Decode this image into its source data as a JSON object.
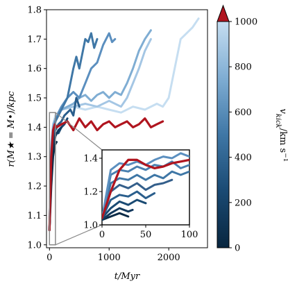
{
  "chart_data": {
    "type": "line",
    "xlabel": "t/Myr",
    "ylabel": "r(M★ = M•)/kpc",
    "xlim": [
      -50,
      2650
    ],
    "ylim": [
      0.99,
      1.8
    ],
    "xticks": [
      0,
      1000,
      2000
    ],
    "yticks": [
      1.0,
      1.1,
      1.2,
      1.3,
      1.4,
      1.5,
      1.6,
      1.7,
      1.8
    ],
    "xtick_labels": [
      "0",
      "1000",
      "2000"
    ],
    "ytick_labels": [
      "1.0",
      "1.1",
      "1.2",
      "1.3",
      "1.4",
      "1.5",
      "1.6",
      "1.7",
      "1.8"
    ],
    "colorbar": {
      "label": "v_kick/km s⁻¹",
      "label_main": "v",
      "label_sub": "kick",
      "label_units": "/km s",
      "label_sup": "−1",
      "range": [
        0,
        1000
      ],
      "ticks": [
        0,
        200,
        400,
        600,
        800,
        1000
      ],
      "tick_labels": [
        "0",
        "200",
        "400",
        "600",
        "800",
        "1000"
      ],
      "extend": "max",
      "extend_color": "#b0151f",
      "colors_low_to_high": [
        "#08263f",
        "#1a4a73",
        "#3f77a6",
        "#7fadd3",
        "#c6def1"
      ]
    },
    "series": [
      {
        "kick": 0,
        "color": "#b0151f",
        "x": [
          0,
          30,
          60,
          90,
          120,
          200,
          300,
          400,
          500,
          600,
          700,
          800,
          900,
          1000,
          1100,
          1200,
          1300,
          1400,
          1500,
          1600,
          1700,
          1800,
          1900
        ],
        "y": [
          1.05,
          1.3,
          1.39,
          1.41,
          1.4,
          1.41,
          1.42,
          1.39,
          1.43,
          1.4,
          1.42,
          1.39,
          1.41,
          1.42,
          1.4,
          1.41,
          1.42,
          1.4,
          1.41,
          1.43,
          1.4,
          1.41,
          1.42
        ]
      },
      {
        "kick": 60,
        "color": "#0b2b47",
        "x": [
          0,
          30,
          60,
          90,
          120
        ],
        "y": [
          1.05,
          1.2,
          1.3,
          1.34,
          1.35
        ]
      },
      {
        "kick": 120,
        "color": "#12385c",
        "x": [
          0,
          30,
          60,
          100,
          150,
          200
        ],
        "y": [
          1.05,
          1.24,
          1.33,
          1.37,
          1.39,
          1.4
        ]
      },
      {
        "kick": 200,
        "color": "#1a4a73",
        "x": [
          0,
          30,
          60,
          100,
          150,
          200,
          250,
          300
        ],
        "y": [
          1.05,
          1.26,
          1.35,
          1.38,
          1.38,
          1.4,
          1.41,
          1.43
        ]
      },
      {
        "kick": 300,
        "color": "#2a5e8c",
        "x": [
          0,
          30,
          60,
          100,
          150,
          200,
          250,
          300,
          350,
          400,
          450,
          500
        ],
        "y": [
          1.05,
          1.28,
          1.37,
          1.39,
          1.41,
          1.42,
          1.44,
          1.45,
          1.46,
          1.44,
          1.5,
          1.47
        ]
      },
      {
        "kick": 400,
        "color": "#3f77a6",
        "x": [
          0,
          30,
          60,
          100,
          150,
          200,
          250,
          300,
          350,
          400,
          450,
          500,
          550,
          600,
          650,
          700,
          750,
          800
        ],
        "y": [
          1.05,
          1.3,
          1.38,
          1.42,
          1.44,
          1.46,
          1.48,
          1.5,
          1.55,
          1.6,
          1.64,
          1.6,
          1.65,
          1.7,
          1.69,
          1.72,
          1.67,
          1.7
        ]
      },
      {
        "kick": 500,
        "color": "#5b8fbf",
        "x": [
          0,
          30,
          60,
          100,
          150,
          200,
          300,
          400,
          500,
          600,
          700,
          800,
          900,
          950,
          1000,
          1050,
          1100
        ],
        "y": [
          1.05,
          1.32,
          1.39,
          1.42,
          1.45,
          1.47,
          1.5,
          1.52,
          1.5,
          1.55,
          1.6,
          1.62,
          1.68,
          1.7,
          1.72,
          1.69,
          1.7
        ]
      },
      {
        "kick": 600,
        "color": "#7fadd3",
        "x": [
          0,
          30,
          60,
          100,
          200,
          300,
          400,
          500,
          600,
          700,
          800,
          900,
          1000,
          1100,
          1200,
          1300,
          1400,
          1500,
          1600,
          1700
        ],
        "y": [
          1.05,
          1.33,
          1.4,
          1.43,
          1.46,
          1.47,
          1.48,
          1.5,
          1.51,
          1.49,
          1.51,
          1.52,
          1.5,
          1.52,
          1.51,
          1.55,
          1.6,
          1.66,
          1.7,
          1.73
        ]
      },
      {
        "kick": 750,
        "color": "#a4c6e4",
        "x": [
          0,
          30,
          60,
          100,
          200,
          400,
          600,
          800,
          1000,
          1200,
          1300,
          1400,
          1500,
          1600,
          1700
        ],
        "y": [
          1.05,
          1.34,
          1.41,
          1.43,
          1.46,
          1.47,
          1.48,
          1.47,
          1.49,
          1.47,
          1.5,
          1.55,
          1.6,
          1.66,
          1.7
        ]
      },
      {
        "kick": 900,
        "color": "#c6def1",
        "x": [
          0,
          30,
          60,
          100,
          200,
          400,
          600,
          800,
          1000,
          1200,
          1400,
          1600,
          1800,
          1900,
          2000,
          2100,
          2200,
          2300,
          2400,
          2500
        ],
        "y": [
          1.05,
          1.35,
          1.41,
          1.44,
          1.46,
          1.47,
          1.46,
          1.47,
          1.46,
          1.45,
          1.47,
          1.46,
          1.48,
          1.47,
          1.5,
          1.6,
          1.7,
          1.72,
          1.74,
          1.77
        ]
      }
    ],
    "inset": {
      "xlim": [
        0,
        100
      ],
      "ylim": [
        1.0,
        1.45
      ],
      "xticks": [
        0,
        50,
        100
      ],
      "yticks": [
        1.0,
        1.2,
        1.4
      ],
      "xtick_labels": [
        "0",
        "50",
        "100"
      ],
      "ytick_labels": [
        "1.0",
        "1.2",
        "1.4"
      ],
      "zoom_box": {
        "x": [
          0,
          100
        ],
        "y": [
          1.0,
          1.45
        ]
      },
      "series": [
        {
          "color": "#b0151f",
          "x": [
            0,
            10,
            20,
            30,
            40,
            50,
            60,
            70,
            80,
            90,
            100
          ],
          "y": [
            1.04,
            1.2,
            1.33,
            1.39,
            1.39,
            1.36,
            1.34,
            1.35,
            1.37,
            1.38,
            1.39
          ]
        },
        {
          "color": "#0b2b47",
          "x": [
            0,
            10,
            20,
            30
          ],
          "y": [
            1.03,
            1.05,
            1.07,
            1.05
          ]
        },
        {
          "color": "#12385c",
          "x": [
            0,
            10,
            20,
            30,
            35
          ],
          "y": [
            1.03,
            1.07,
            1.1,
            1.08,
            1.09
          ]
        },
        {
          "color": "#1a4a73",
          "x": [
            0,
            10,
            20,
            30,
            40,
            50
          ],
          "y": [
            1.04,
            1.1,
            1.14,
            1.12,
            1.15,
            1.13
          ]
        },
        {
          "color": "#2a5e8c",
          "x": [
            0,
            10,
            20,
            30,
            40,
            50,
            60
          ],
          "y": [
            1.04,
            1.15,
            1.18,
            1.17,
            1.2,
            1.16,
            1.19
          ]
        },
        {
          "color": "#345f8b",
          "x": [
            0,
            10,
            20,
            30,
            40,
            50,
            60,
            70,
            80
          ],
          "y": [
            1.04,
            1.2,
            1.24,
            1.22,
            1.25,
            1.21,
            1.24,
            1.25,
            1.27
          ]
        },
        {
          "color": "#3f77a6",
          "x": [
            0,
            10,
            20,
            30,
            40,
            50,
            60,
            70,
            80,
            90,
            100
          ],
          "y": [
            1.04,
            1.25,
            1.28,
            1.27,
            1.3,
            1.27,
            1.3,
            1.28,
            1.32,
            1.3,
            1.32
          ]
        },
        {
          "color": "#4a80b0",
          "x": [
            0,
            10,
            20,
            30,
            40,
            50,
            60,
            70,
            80,
            90,
            100
          ],
          "y": [
            1.04,
            1.3,
            1.33,
            1.32,
            1.35,
            1.33,
            1.36,
            1.35,
            1.38,
            1.34,
            1.36
          ]
        },
        {
          "color": "#5b8fbf",
          "x": [
            0,
            10,
            20,
            30,
            40,
            50,
            60,
            70,
            80,
            90,
            100
          ],
          "y": [
            1.04,
            1.33,
            1.37,
            1.36,
            1.38,
            1.36,
            1.39,
            1.41,
            1.4,
            1.43,
            1.41
          ]
        }
      ]
    }
  }
}
